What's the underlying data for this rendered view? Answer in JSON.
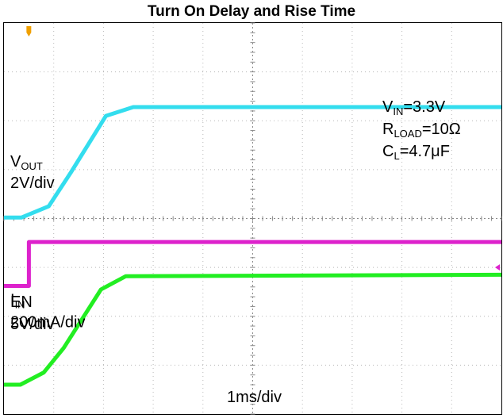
{
  "page": {
    "title": "Turn On Delay and Rise Time"
  },
  "chart_data": {
    "type": "line",
    "title": "Turn On Delay and Rise Time",
    "x_scale": "1ms/div",
    "x_divisions": 10,
    "y_divisions": 8,
    "grid": true,
    "trigger_marker_color": "#f0a000",
    "conditions": [
      {
        "main": "V",
        "sub": "IN",
        "rest": "=3.3V"
      },
      {
        "main": "R",
        "sub": "LOAD",
        "rest": "=10Ω"
      },
      {
        "main": "C",
        "sub": "L",
        "rest": "=4.7μF"
      }
    ],
    "series": [
      {
        "name_main": "V",
        "name_sub": "OUT",
        "scale": "2V/div",
        "color": "#33ddee",
        "x": [
          0,
          0.35,
          0.9,
          1.35,
          2.05,
          2.6,
          10
        ],
        "y": [
          4.02,
          4.02,
          4.25,
          4.95,
          6.1,
          6.28,
          6.28
        ]
      },
      {
        "name_main": "EN",
        "name_sub": "",
        "scale": "5V/div",
        "color": "#dd22cc",
        "x": [
          0,
          0.5,
          0.5,
          10
        ],
        "y": [
          2.62,
          2.62,
          3.52,
          3.52
        ]
      },
      {
        "name_main": "I",
        "name_sub": "IN",
        "scale": "200mA/div",
        "color": "#22ee22",
        "x": [
          0,
          0.33,
          0.8,
          1.2,
          1.95,
          2.45,
          10
        ],
        "y": [
          0.6,
          0.6,
          0.85,
          1.35,
          2.55,
          2.82,
          2.85
        ]
      }
    ]
  }
}
